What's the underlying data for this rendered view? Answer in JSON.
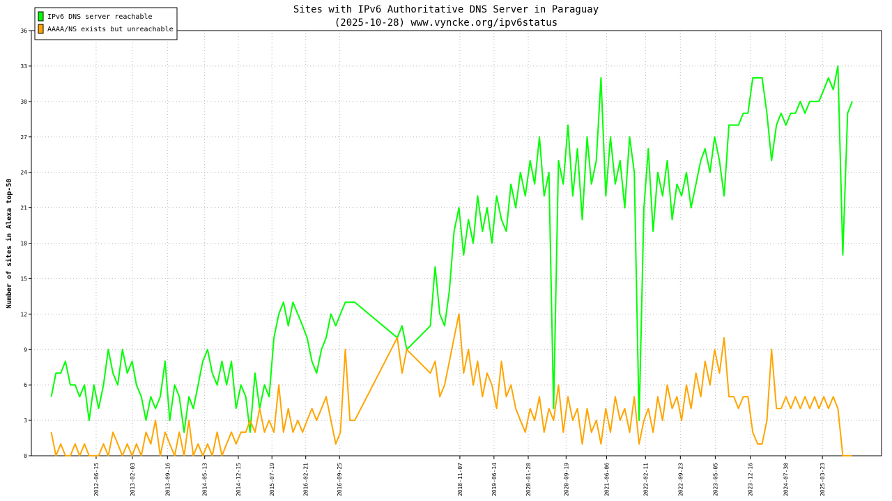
{
  "chart_data": {
    "type": "line",
    "title": "Sites with IPv6 Authoritative DNS Server in Paraguay",
    "subtitle": "(2025-10-28) www.vyncke.org/ipv6status",
    "y_label": "Number of sites in Alexa top-50",
    "legend": "top-left",
    "grid": true,
    "xlim": [
      "2011-04-26",
      "2026-04-07"
    ],
    "xticks": [
      "2012-06-15",
      "2013-02-03",
      "2013-09-16",
      "2014-05-13",
      "2014-12-15",
      "2015-07-19",
      "2016-02-21",
      "2016-09-25",
      "2018-11-07",
      "2019-06-14",
      "2020-01-20",
      "2020-09-19",
      "2021-06-06",
      "2022-02-11",
      "2022-09-23",
      "2023-05-05",
      "2023-12-16",
      "2024-07-30",
      "2025-03-23"
    ],
    "ylim": [
      0,
      36
    ],
    "yticks": [
      0,
      3,
      6,
      9,
      12,
      15,
      18,
      21,
      24,
      27,
      30,
      33,
      36
    ],
    "x": [
      "2011-09-01",
      "2011-10-01",
      "2011-11-01",
      "2011-12-01",
      "2012-01-01",
      "2012-02-01",
      "2012-03-01",
      "2012-04-01",
      "2012-05-01",
      "2012-06-01",
      "2012-07-01",
      "2012-08-01",
      "2012-09-01",
      "2012-10-01",
      "2012-11-01",
      "2012-12-01",
      "2013-01-01",
      "2013-02-01",
      "2013-03-01",
      "2013-04-01",
      "2013-05-01",
      "2013-06-01",
      "2013-07-01",
      "2013-08-01",
      "2013-09-01",
      "2013-10-01",
      "2013-11-01",
      "2013-12-01",
      "2014-01-01",
      "2014-02-01",
      "2014-03-01",
      "2014-04-01",
      "2014-05-01",
      "2014-06-01",
      "2014-07-01",
      "2014-08-01",
      "2014-09-01",
      "2014-10-01",
      "2014-11-01",
      "2014-12-01",
      "2015-01-01",
      "2015-02-01",
      "2015-03-01",
      "2015-04-01",
      "2015-05-01",
      "2015-06-01",
      "2015-07-01",
      "2015-08-01",
      "2015-09-01",
      "2015-10-01",
      "2015-11-01",
      "2015-12-01",
      "2016-01-01",
      "2016-02-01",
      "2016-03-01",
      "2016-04-01",
      "2016-05-01",
      "2016-06-01",
      "2016-07-01",
      "2016-08-01",
      "2016-09-01",
      "2016-10-01",
      "2016-11-01",
      "2016-12-01",
      "2017-01-01",
      "2017-10-01",
      "2017-11-01",
      "2017-12-01",
      "2018-05-01",
      "2018-06-01",
      "2018-07-01",
      "2018-08-01",
      "2018-09-01",
      "2018-10-01",
      "2018-11-01",
      "2018-12-01",
      "2019-01-01",
      "2019-02-01",
      "2019-03-01",
      "2019-04-01",
      "2019-05-01",
      "2019-06-01",
      "2019-07-01",
      "2019-08-01",
      "2019-09-01",
      "2019-10-01",
      "2019-11-01",
      "2019-12-01",
      "2020-01-01",
      "2020-02-01",
      "2020-03-01",
      "2020-04-01",
      "2020-05-01",
      "2020-06-01",
      "2020-07-01",
      "2020-08-01",
      "2020-09-01",
      "2020-10-01",
      "2020-11-01",
      "2020-12-01",
      "2021-01-01",
      "2021-02-01",
      "2021-03-01",
      "2021-04-01",
      "2021-05-01",
      "2021-06-01",
      "2021-07-01",
      "2021-08-01",
      "2021-09-01",
      "2021-10-01",
      "2021-11-01",
      "2021-12-01",
      "2022-01-01",
      "2022-02-01",
      "2022-03-01",
      "2022-04-01",
      "2022-05-01",
      "2022-06-01",
      "2022-07-01",
      "2022-08-01",
      "2022-09-01",
      "2022-10-01",
      "2022-11-01",
      "2022-12-01",
      "2023-01-01",
      "2023-02-01",
      "2023-03-01",
      "2023-04-01",
      "2023-05-01",
      "2023-06-01",
      "2023-07-01",
      "2023-08-01",
      "2023-09-01",
      "2023-10-01",
      "2023-11-01",
      "2023-12-01",
      "2024-01-01",
      "2024-02-01",
      "2024-03-01",
      "2024-04-01",
      "2024-05-01",
      "2024-06-01",
      "2024-07-01",
      "2024-08-01",
      "2024-09-01",
      "2024-10-01",
      "2024-11-01",
      "2024-12-01",
      "2025-01-01",
      "2025-02-01",
      "2025-03-01",
      "2025-04-01",
      "2025-05-01",
      "2025-06-01",
      "2025-07-01",
      "2025-08-01",
      "2025-09-01",
      "2025-10-01"
    ],
    "series": [
      {
        "name": "IPv6 DNS server reachable",
        "color": "#00ff00",
        "values": [
          5,
          7,
          7,
          8,
          6,
          6,
          5,
          6,
          3,
          6,
          4,
          6,
          9,
          7,
          6,
          9,
          7,
          8,
          6,
          5,
          3,
          5,
          4,
          5,
          8,
          3,
          6,
          5,
          2,
          5,
          4,
          6,
          8,
          9,
          7,
          6,
          8,
          6,
          8,
          4,
          6,
          5,
          2,
          7,
          4,
          6,
          5,
          10,
          12,
          13,
          11,
          13,
          12,
          11,
          10,
          8,
          7,
          9,
          10,
          12,
          11,
          12,
          13,
          13,
          13,
          10,
          11,
          9,
          11,
          16,
          12,
          11,
          14,
          19,
          21,
          17,
          20,
          18,
          22,
          19,
          21,
          18,
          22,
          20,
          19,
          23,
          21,
          24,
          22,
          25,
          23,
          27,
          22,
          24,
          4,
          25,
          23,
          28,
          22,
          26,
          20,
          27,
          23,
          25,
          32,
          22,
          27,
          23,
          25,
          21,
          27,
          24,
          3,
          21,
          26,
          19,
          24,
          22,
          25,
          20,
          23,
          22,
          24,
          21,
          23,
          25,
          26,
          24,
          27,
          25,
          22,
          28,
          28,
          28,
          29,
          29,
          32,
          32,
          32,
          29,
          25,
          28,
          29,
          28,
          29,
          29,
          30,
          29,
          30,
          30,
          30,
          31,
          32,
          31,
          33,
          17,
          29,
          30
        ]
      },
      {
        "name": "AAAA/NS exists but unreachable",
        "color": "#ffa500",
        "values": [
          2,
          0,
          1,
          0,
          0,
          1,
          0,
          1,
          0,
          0,
          0,
          1,
          0,
          2,
          1,
          0,
          1,
          0,
          1,
          0,
          2,
          1,
          3,
          0,
          2,
          1,
          0,
          2,
          0,
          3,
          0,
          1,
          0,
          1,
          0,
          2,
          0,
          1,
          2,
          1,
          2,
          2,
          3,
          2,
          4,
          2,
          3,
          2,
          6,
          2,
          4,
          2,
          3,
          2,
          3,
          4,
          3,
          4,
          5,
          3,
          1,
          2,
          9,
          3,
          3,
          10,
          7,
          9,
          7,
          8,
          5,
          6,
          8,
          10,
          12,
          7,
          9,
          6,
          8,
          5,
          7,
          6,
          4,
          8,
          5,
          6,
          4,
          3,
          2,
          4,
          3,
          5,
          2,
          4,
          3,
          6,
          2,
          5,
          3,
          4,
          1,
          4,
          2,
          3,
          1,
          4,
          2,
          5,
          3,
          4,
          2,
          5,
          1,
          3,
          4,
          2,
          5,
          3,
          6,
          4,
          5,
          3,
          6,
          4,
          7,
          5,
          8,
          6,
          9,
          7,
          10,
          5,
          5,
          4,
          5,
          5,
          2,
          1,
          1,
          3,
          9,
          4,
          4,
          5,
          4,
          5,
          4,
          5,
          4,
          5,
          4,
          5,
          4,
          5,
          4,
          0,
          0,
          0
        ]
      }
    ]
  }
}
